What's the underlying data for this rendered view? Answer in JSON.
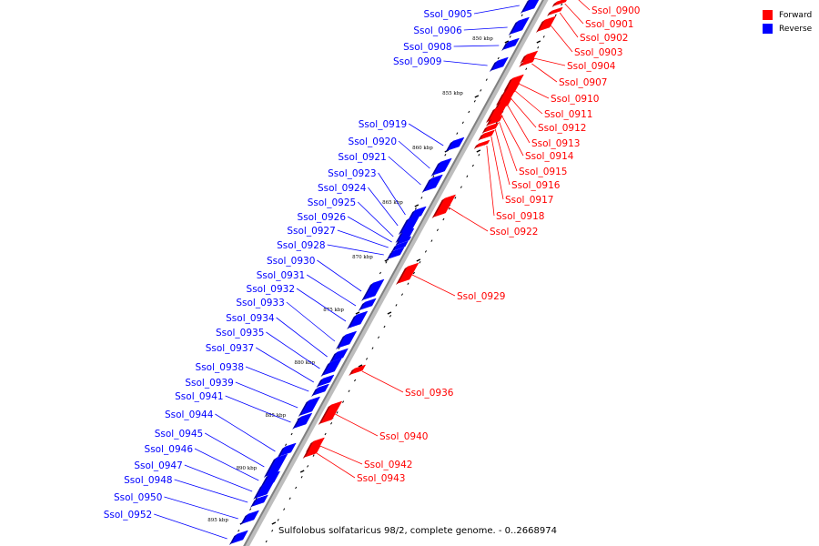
{
  "caption": "Sulfolobus solfataricus 98/2, complete genome. - 0..2668974",
  "legend": [
    {
      "label": "Forward",
      "color": "#ff0000"
    },
    {
      "label": "Reverse",
      "color": "#0000ff"
    }
  ],
  "colors": {
    "forward": "#ff0000",
    "reverse": "#0000ff",
    "backbone": "#808080"
  },
  "ticks": [
    "850 kbp",
    "855 kbp",
    "860 kbp",
    "865 kbp",
    "870 kbp",
    "875 kbp",
    "880 kbp",
    "885 kbp",
    "890 kbp",
    "895 kbp"
  ],
  "reverse_genes": [
    "Ssol_0905",
    "Ssol_0906",
    "Ssol_0908",
    "Ssol_0909",
    "Ssol_0919",
    "Ssol_0920",
    "Ssol_0921",
    "Ssol_0923",
    "Ssol_0924",
    "Ssol_0925",
    "Ssol_0926",
    "Ssol_0927",
    "Ssol_0928",
    "Ssol_0930",
    "Ssol_0931",
    "Ssol_0932",
    "Ssol_0933",
    "Ssol_0934",
    "Ssol_0935",
    "Ssol_0937",
    "Ssol_0938",
    "Ssol_0939",
    "Ssol_0941",
    "Ssol_0944",
    "Ssol_0945",
    "Ssol_0946",
    "Ssol_0947",
    "Ssol_0948",
    "Ssol_0950",
    "Ssol_0952"
  ],
  "forward_genes": [
    "Ssol_0900",
    "Ssol_0901",
    "Ssol_0902",
    "Ssol_0903",
    "Ssol_0904",
    "Ssol_0907",
    "Ssol_0910",
    "Ssol_0911",
    "Ssol_0912",
    "Ssol_0913",
    "Ssol_0914",
    "Ssol_0915",
    "Ssol_0916",
    "Ssol_0917",
    "Ssol_0918",
    "Ssol_0922",
    "Ssol_0929",
    "Ssol_0936",
    "Ssol_0940",
    "Ssol_0942",
    "Ssol_0943"
  ]
}
